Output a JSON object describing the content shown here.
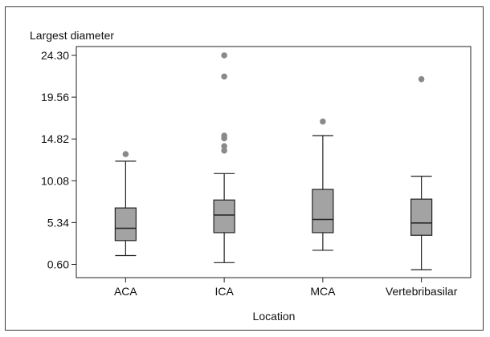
{
  "chart_data": {
    "type": "box",
    "ylabel": "Largest diameter",
    "xlabel": "Location",
    "ylim": [
      -0.9,
      25.3
    ],
    "y_ticks": [
      0.6,
      5.34,
      10.08,
      14.82,
      19.56,
      24.3
    ],
    "y_tick_labels": [
      "0.60",
      "5.34",
      "10.08",
      "14.82",
      "19.56",
      "24.30"
    ],
    "categories": [
      "ACA",
      "ICA",
      "MCA",
      "Vertebribasilar"
    ],
    "colors": {
      "box": "#a3a3a3",
      "outlier": "#8a8a8a",
      "line": "#222222"
    },
    "boxes": [
      {
        "category": "ACA",
        "min": 1.6,
        "q1": 3.3,
        "median": 4.7,
        "q3": 7.0,
        "max": 12.3,
        "outliers": [
          13.1
        ]
      },
      {
        "category": "ICA",
        "min": 0.8,
        "q1": 4.2,
        "median": 6.2,
        "q3": 7.9,
        "max": 10.9,
        "outliers": [
          13.5,
          14.0,
          14.9,
          15.2,
          21.9,
          24.3
        ]
      },
      {
        "category": "MCA",
        "min": 2.2,
        "q1": 4.2,
        "median": 5.7,
        "q3": 9.1,
        "max": 15.2,
        "outliers": [
          16.8
        ]
      },
      {
        "category": "Vertebribasilar",
        "min": 0.0,
        "q1": 3.9,
        "median": 5.3,
        "q3": 8.0,
        "max": 10.6,
        "outliers": [
          21.6
        ]
      }
    ]
  }
}
